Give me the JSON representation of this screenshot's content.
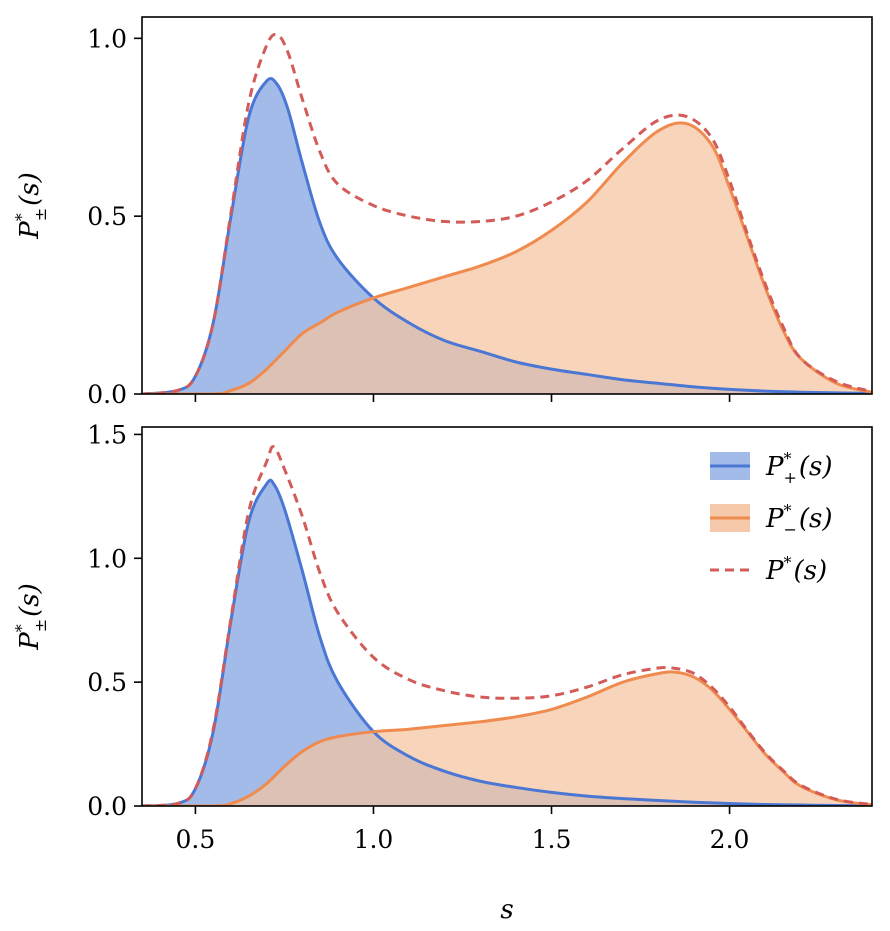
{
  "chart_data": [
    {
      "type": "area",
      "panel": "top",
      "title": "",
      "xlabel": "",
      "ylabel": {
        "main": "P",
        "sup": "*",
        "sub": "±",
        "arg": "(s)"
      },
      "xlim": [
        0.35,
        2.4
      ],
      "ylim": [
        0,
        1.06
      ],
      "xticks": [
        0.5,
        1.0,
        1.5,
        2.0
      ],
      "xtick_labels": [],
      "yticks": [
        0.0,
        0.5,
        1.0
      ],
      "ytick_labels": [
        "0.0",
        "0.5",
        "1.0"
      ],
      "grid": false,
      "legend": null,
      "series": [
        {
          "name": "P*+(s)",
          "style": "filled",
          "color": "#4b77d4",
          "fill": "#a2bbe9",
          "x": [
            0.35,
            0.45,
            0.5,
            0.55,
            0.6,
            0.65,
            0.7,
            0.73,
            0.76,
            0.8,
            0.85,
            0.9,
            1.0,
            1.1,
            1.2,
            1.3,
            1.4,
            1.5,
            1.6,
            1.7,
            1.8,
            1.9,
            2.0,
            2.1,
            2.2,
            2.3,
            2.4
          ],
          "values": [
            0.0,
            0.01,
            0.05,
            0.2,
            0.5,
            0.78,
            0.88,
            0.87,
            0.8,
            0.65,
            0.48,
            0.38,
            0.27,
            0.2,
            0.15,
            0.12,
            0.09,
            0.07,
            0.055,
            0.04,
            0.03,
            0.02,
            0.013,
            0.008,
            0.005,
            0.003,
            0.002
          ]
        },
        {
          "name": "P*-(s)",
          "style": "filled",
          "color": "#ef8b4e",
          "fill": "#f5c3a1",
          "x": [
            0.35,
            0.55,
            0.6,
            0.65,
            0.7,
            0.75,
            0.8,
            0.85,
            0.9,
            1.0,
            1.1,
            1.2,
            1.3,
            1.4,
            1.5,
            1.6,
            1.7,
            1.8,
            1.88,
            1.95,
            2.0,
            2.05,
            2.1,
            2.15,
            2.2,
            2.3,
            2.4
          ],
          "values": [
            0.0,
            0.0,
            0.01,
            0.03,
            0.07,
            0.12,
            0.17,
            0.2,
            0.23,
            0.27,
            0.3,
            0.33,
            0.36,
            0.4,
            0.46,
            0.54,
            0.65,
            0.74,
            0.76,
            0.7,
            0.58,
            0.44,
            0.3,
            0.18,
            0.1,
            0.03,
            0.005
          ]
        },
        {
          "name": "P*(s)",
          "style": "dashed",
          "color": "#d35b58",
          "x": [
            0.35,
            0.45,
            0.5,
            0.55,
            0.6,
            0.65,
            0.7,
            0.73,
            0.76,
            0.8,
            0.85,
            0.9,
            1.0,
            1.1,
            1.2,
            1.3,
            1.4,
            1.5,
            1.6,
            1.7,
            1.8,
            1.88,
            1.95,
            2.0,
            2.05,
            2.1,
            2.15,
            2.2,
            2.3,
            2.4
          ],
          "values": [
            0.0,
            0.01,
            0.05,
            0.2,
            0.51,
            0.82,
            0.98,
            1.01,
            0.96,
            0.83,
            0.68,
            0.59,
            0.53,
            0.5,
            0.485,
            0.485,
            0.5,
            0.54,
            0.6,
            0.69,
            0.77,
            0.78,
            0.72,
            0.6,
            0.45,
            0.31,
            0.19,
            0.1,
            0.035,
            0.007
          ]
        }
      ]
    },
    {
      "type": "area",
      "panel": "bottom",
      "title": "",
      "xlabel": "s",
      "ylabel": {
        "main": "P",
        "sup": "*",
        "sub": "±",
        "arg": "(s)"
      },
      "xlim": [
        0.35,
        2.4
      ],
      "ylim": [
        0,
        1.53
      ],
      "xticks": [
        0.5,
        1.0,
        1.5,
        2.0
      ],
      "xtick_labels": [
        "0.5",
        "1.0",
        "1.5",
        "2.0"
      ],
      "yticks": [
        0.0,
        0.5,
        1.0,
        1.5
      ],
      "ytick_labels": [
        "0.0",
        "0.5",
        "1.0",
        "1.5"
      ],
      "grid": false,
      "legend": {
        "position": "upper-right",
        "entries": [
          {
            "main": "P",
            "sup": "*",
            "sub": "+",
            "arg": "(s)"
          },
          {
            "main": "P",
            "sup": "*",
            "sub": "−",
            "arg": "(s)"
          },
          {
            "main": "P",
            "sup": "*",
            "sub": "",
            "arg": "(s)"
          }
        ]
      },
      "series": [
        {
          "name": "P*+(s)",
          "style": "filled",
          "color": "#4b77d4",
          "fill": "#a2bbe9",
          "x": [
            0.35,
            0.45,
            0.5,
            0.55,
            0.6,
            0.65,
            0.7,
            0.72,
            0.75,
            0.8,
            0.85,
            0.9,
            1.0,
            1.1,
            1.2,
            1.3,
            1.4,
            1.5,
            1.6,
            1.7,
            1.8,
            1.9,
            2.0,
            2.1,
            2.2,
            2.3,
            2.4
          ],
          "values": [
            0.0,
            0.01,
            0.07,
            0.3,
            0.75,
            1.15,
            1.3,
            1.3,
            1.2,
            0.95,
            0.68,
            0.5,
            0.3,
            0.2,
            0.14,
            0.1,
            0.075,
            0.055,
            0.04,
            0.03,
            0.022,
            0.015,
            0.01,
            0.006,
            0.004,
            0.002,
            0.001
          ]
        },
        {
          "name": "P*-(s)",
          "style": "filled",
          "color": "#ef8b4e",
          "fill": "#f5c3a1",
          "x": [
            0.35,
            0.55,
            0.6,
            0.65,
            0.7,
            0.75,
            0.8,
            0.85,
            0.9,
            1.0,
            1.1,
            1.2,
            1.3,
            1.4,
            1.5,
            1.6,
            1.7,
            1.8,
            1.85,
            1.9,
            1.95,
            2.0,
            2.05,
            2.1,
            2.15,
            2.2,
            2.3,
            2.4
          ],
          "values": [
            0.0,
            0.0,
            0.01,
            0.04,
            0.09,
            0.16,
            0.22,
            0.26,
            0.28,
            0.3,
            0.31,
            0.325,
            0.34,
            0.36,
            0.39,
            0.44,
            0.5,
            0.535,
            0.54,
            0.52,
            0.47,
            0.39,
            0.3,
            0.21,
            0.14,
            0.08,
            0.025,
            0.005
          ]
        },
        {
          "name": "P*(s)",
          "style": "dashed",
          "color": "#d35b58",
          "x": [
            0.35,
            0.45,
            0.5,
            0.55,
            0.6,
            0.65,
            0.7,
            0.72,
            0.75,
            0.8,
            0.85,
            0.9,
            1.0,
            1.1,
            1.2,
            1.3,
            1.4,
            1.5,
            1.6,
            1.7,
            1.8,
            1.85,
            1.9,
            1.95,
            2.0,
            2.05,
            2.1,
            2.15,
            2.2,
            2.3,
            2.4
          ],
          "values": [
            0.0,
            0.01,
            0.07,
            0.31,
            0.76,
            1.19,
            1.39,
            1.45,
            1.36,
            1.17,
            0.94,
            0.78,
            0.6,
            0.51,
            0.465,
            0.44,
            0.435,
            0.445,
            0.48,
            0.53,
            0.557,
            0.555,
            0.535,
            0.48,
            0.4,
            0.305,
            0.215,
            0.144,
            0.084,
            0.027,
            0.006
          ]
        }
      ]
    }
  ]
}
